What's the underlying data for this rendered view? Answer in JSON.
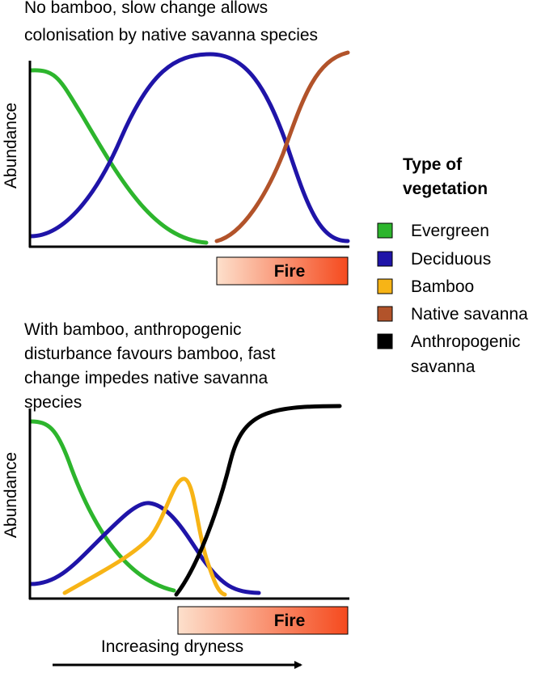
{
  "panels": [
    {
      "title_lines": [
        "No bamboo, slow change allows",
        "colonisation by native savanna species"
      ],
      "y_label": "Abundance",
      "fire_label": "Fire"
    },
    {
      "title_lines": [
        "With bamboo, anthropogenic",
        "disturbance favours bamboo, fast",
        "change impedes native savanna",
        "species"
      ],
      "y_label": "Abundance",
      "fire_label": "Fire"
    }
  ],
  "legend": {
    "title_lines": [
      "Type of",
      "vegetation"
    ],
    "items": [
      {
        "label_lines": [
          "Evergreen"
        ],
        "color": "#2db52d"
      },
      {
        "label_lines": [
          "Deciduous"
        ],
        "color": "#1f14a8"
      },
      {
        "label_lines": [
          "Bamboo"
        ],
        "color": "#f7b416"
      },
      {
        "label_lines": [
          "Native savanna"
        ],
        "color": "#b2532a"
      },
      {
        "label_lines": [
          "Anthropogenic",
          "savanna"
        ],
        "color": "#000000"
      }
    ]
  },
  "x_label": "Increasing dryness"
}
